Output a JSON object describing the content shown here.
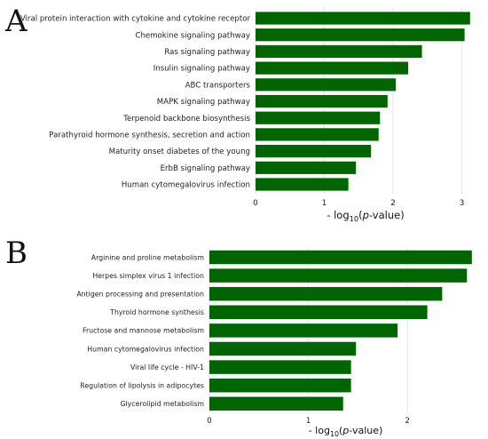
{
  "chart_data": [
    {
      "panel_label": "A",
      "type": "bar",
      "orientation": "horizontal",
      "categories": [
        "Viral protein interaction with cytokine and cytokine receptor",
        "Chemokine signaling pathway",
        "Ras signaling pathway",
        "Insulin signaling pathway",
        "ABC transporters",
        "MAPK signaling pathway",
        "Terpenoid backbone biosynthesis",
        "Parathyroid hormone synthesis, secretion and action",
        "Maturity onset diabetes of the young",
        "ErbB signaling pathway",
        "Human cytomegalovirus infection"
      ],
      "values": [
        3.12,
        3.04,
        2.42,
        2.22,
        2.04,
        1.92,
        1.81,
        1.79,
        1.68,
        1.46,
        1.35
      ],
      "xlim": [
        0,
        3.2
      ],
      "xticks": [
        0,
        1,
        2,
        3
      ],
      "xlabel": {
        "prefix": "- log",
        "sub": "10",
        "mid": "(",
        "italic": "p",
        "suffix": "-value)"
      },
      "grid": "vertical",
      "bar_color": "#006400"
    },
    {
      "panel_label": "B",
      "type": "bar",
      "orientation": "horizontal",
      "categories": [
        "Arginine and proline metabolism",
        "Herpes simplex virus 1 infection",
        "Antigen processing and presentation",
        "Thyroid hormone synthesis",
        "Fructose and mannose metabolism",
        "Human cytomegalovirus infection",
        "Viral life cycle - HIV-1",
        "Regulation of lipolysis in adipocytes",
        "Glycerolipid metabolism"
      ],
      "values": [
        2.65,
        2.6,
        2.35,
        2.2,
        1.9,
        1.48,
        1.43,
        1.43,
        1.35
      ],
      "xlim": [
        0,
        2.75
      ],
      "xticks": [
        0,
        1,
        2
      ],
      "xlabel": {
        "prefix": "- log",
        "sub": "10",
        "mid": "(",
        "italic": "p",
        "suffix": "-value)"
      },
      "grid": "vertical",
      "bar_color": "#006400"
    }
  ]
}
